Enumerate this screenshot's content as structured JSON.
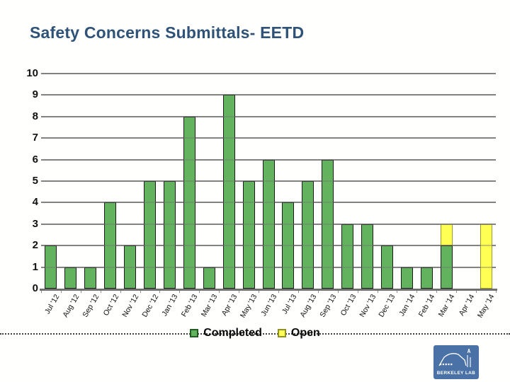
{
  "title": "Safety Concerns Submittals- EETD",
  "legend": {
    "completed": "Completed",
    "open": "Open"
  },
  "colors": {
    "title": "#2F5277",
    "completed_fill": "#62B25E",
    "completed_border": "#1C1C1C",
    "open_fill": "#FFFF54",
    "open_border": "#9A9A2A",
    "gridline": "#8C8C8C",
    "baseline": "#6F6F6F",
    "logo_blue": "#4B72A6"
  },
  "chart_data": {
    "type": "bar",
    "stacked": true,
    "title": "Safety Concerns Submittals- EETD",
    "xlabel": "",
    "ylabel": "",
    "ylim": [
      0,
      10
    ],
    "yticks": [
      0,
      1,
      2,
      3,
      4,
      5,
      6,
      7,
      8,
      9,
      10
    ],
    "grid": true,
    "legend_position": "bottom",
    "categories": [
      "Jul '12",
      "Aug '12",
      "Sep '12",
      "Oct '12",
      "Nov '12",
      "Dec '12",
      "Jan '13",
      "Feb '13",
      "Mar '13",
      "Apr '13",
      "May '13",
      "Jun '13",
      "Jul '13",
      "Aug '13",
      "Sep '13",
      "Oct '13",
      "Nov '13",
      "Dec '13",
      "Jan '14",
      "Feb '14",
      "Mar '14",
      "Apr '14",
      "May '14"
    ],
    "series": [
      {
        "name": "Completed",
        "color": "#62B25E",
        "values": [
          2,
          1,
          1,
          4,
          2,
          5,
          5,
          8,
          1,
          9,
          5,
          6,
          4,
          5,
          6,
          3,
          3,
          2,
          1,
          1,
          2,
          0,
          0
        ]
      },
      {
        "name": "Open",
        "color": "#FFFF54",
        "values": [
          0,
          0,
          0,
          0,
          0,
          0,
          0,
          0,
          0,
          0,
          0,
          0,
          0,
          0,
          0,
          0,
          0,
          0,
          0,
          0,
          1,
          0,
          3
        ]
      }
    ]
  },
  "logo": {
    "text": "BERKELEY LAB"
  }
}
